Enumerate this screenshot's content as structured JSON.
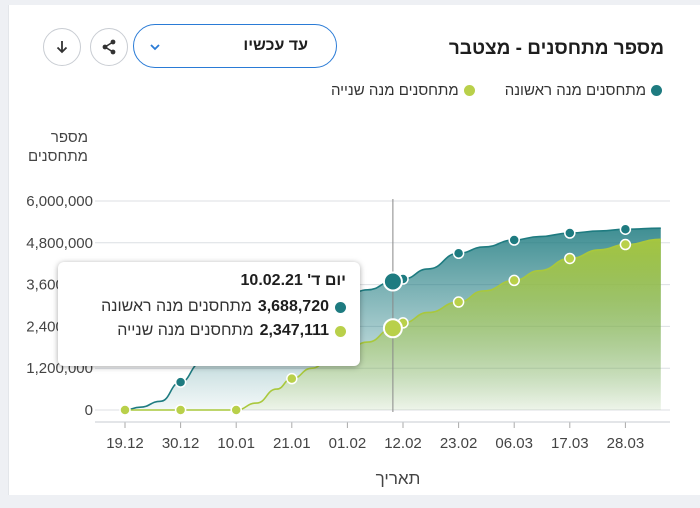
{
  "header": {
    "title": "מספר מתחסנים - מצטבר",
    "range_selected": "עד עכשיו",
    "download_icon": "download-icon",
    "share_icon": "share-icon",
    "chevron_icon": "chevron-down-icon"
  },
  "colors": {
    "first_dose": "#1e7b80",
    "second_dose": "#b9d04a",
    "accent": "#2a7bd6"
  },
  "tooltip": {
    "date_label": "יום ד' 10.02.21",
    "first_value": "3,688,720",
    "first_label": "מתחסנים מנה ראשונה",
    "second_value": "2,347,111",
    "second_label": "מתחסנים מנה שנייה"
  },
  "chart_data": {
    "type": "area",
    "title": "מספר מתחסנים - מצטבר",
    "xlabel": "תאריך",
    "ylabel": "מספר מתחסנים",
    "ylim": [
      0,
      6000000
    ],
    "yticks": [
      "0",
      "1,200,000",
      "2,400,000",
      "3,600,000",
      "4,800,000",
      "6,000,000"
    ],
    "ytick_values": [
      0,
      1200000,
      2400000,
      3600000,
      4800000,
      6000000
    ],
    "xtick_labels": [
      "19.12",
      "30.12",
      "10.01",
      "21.01",
      "01.02",
      "12.02",
      "23.02",
      "06.03",
      "17.03",
      "28.03"
    ],
    "x_days": [
      0,
      11,
      22,
      33,
      44,
      55,
      66,
      77,
      88,
      99
    ],
    "x_end_day": 106,
    "hover_day": 53,
    "legend_position": "top",
    "grid": true,
    "series": [
      {
        "name": "מתחסנים מנה ראשונה",
        "points": [
          [
            0,
            0
          ],
          [
            3,
            80000
          ],
          [
            7,
            250000
          ],
          [
            11,
            800000
          ],
          [
            15,
            1350000
          ],
          [
            19,
            1750000
          ],
          [
            22,
            1950000
          ],
          [
            26,
            2300000
          ],
          [
            30,
            2600000
          ],
          [
            33,
            2750000
          ],
          [
            37,
            3000000
          ],
          [
            41,
            3250000
          ],
          [
            44,
            3320000
          ],
          [
            48,
            3450000
          ],
          [
            53,
            3688720
          ],
          [
            55,
            3760000
          ],
          [
            60,
            4050000
          ],
          [
            66,
            4500000
          ],
          [
            71,
            4680000
          ],
          [
            77,
            4880000
          ],
          [
            82,
            4980000
          ],
          [
            88,
            5080000
          ],
          [
            94,
            5140000
          ],
          [
            99,
            5190000
          ],
          [
            106,
            5220000
          ]
        ],
        "markers_days": [
          11,
          55,
          66,
          77,
          88,
          99
        ]
      },
      {
        "name": "מתחסנים מנה שנייה",
        "points": [
          [
            0,
            0
          ],
          [
            6,
            0
          ],
          [
            11,
            0
          ],
          [
            17,
            0
          ],
          [
            22,
            0
          ],
          [
            26,
            200000
          ],
          [
            30,
            600000
          ],
          [
            33,
            900000
          ],
          [
            37,
            1200000
          ],
          [
            41,
            1550000
          ],
          [
            44,
            1750000
          ],
          [
            48,
            1950000
          ],
          [
            53,
            2347111
          ],
          [
            55,
            2500000
          ],
          [
            60,
            2800000
          ],
          [
            66,
            3100000
          ],
          [
            71,
            3420000
          ],
          [
            77,
            3720000
          ],
          [
            82,
            4000000
          ],
          [
            88,
            4350000
          ],
          [
            94,
            4600000
          ],
          [
            99,
            4750000
          ],
          [
            106,
            4900000
          ]
        ],
        "markers_days": [
          0,
          11,
          22,
          33,
          55,
          66,
          77,
          88,
          99
        ]
      }
    ]
  }
}
